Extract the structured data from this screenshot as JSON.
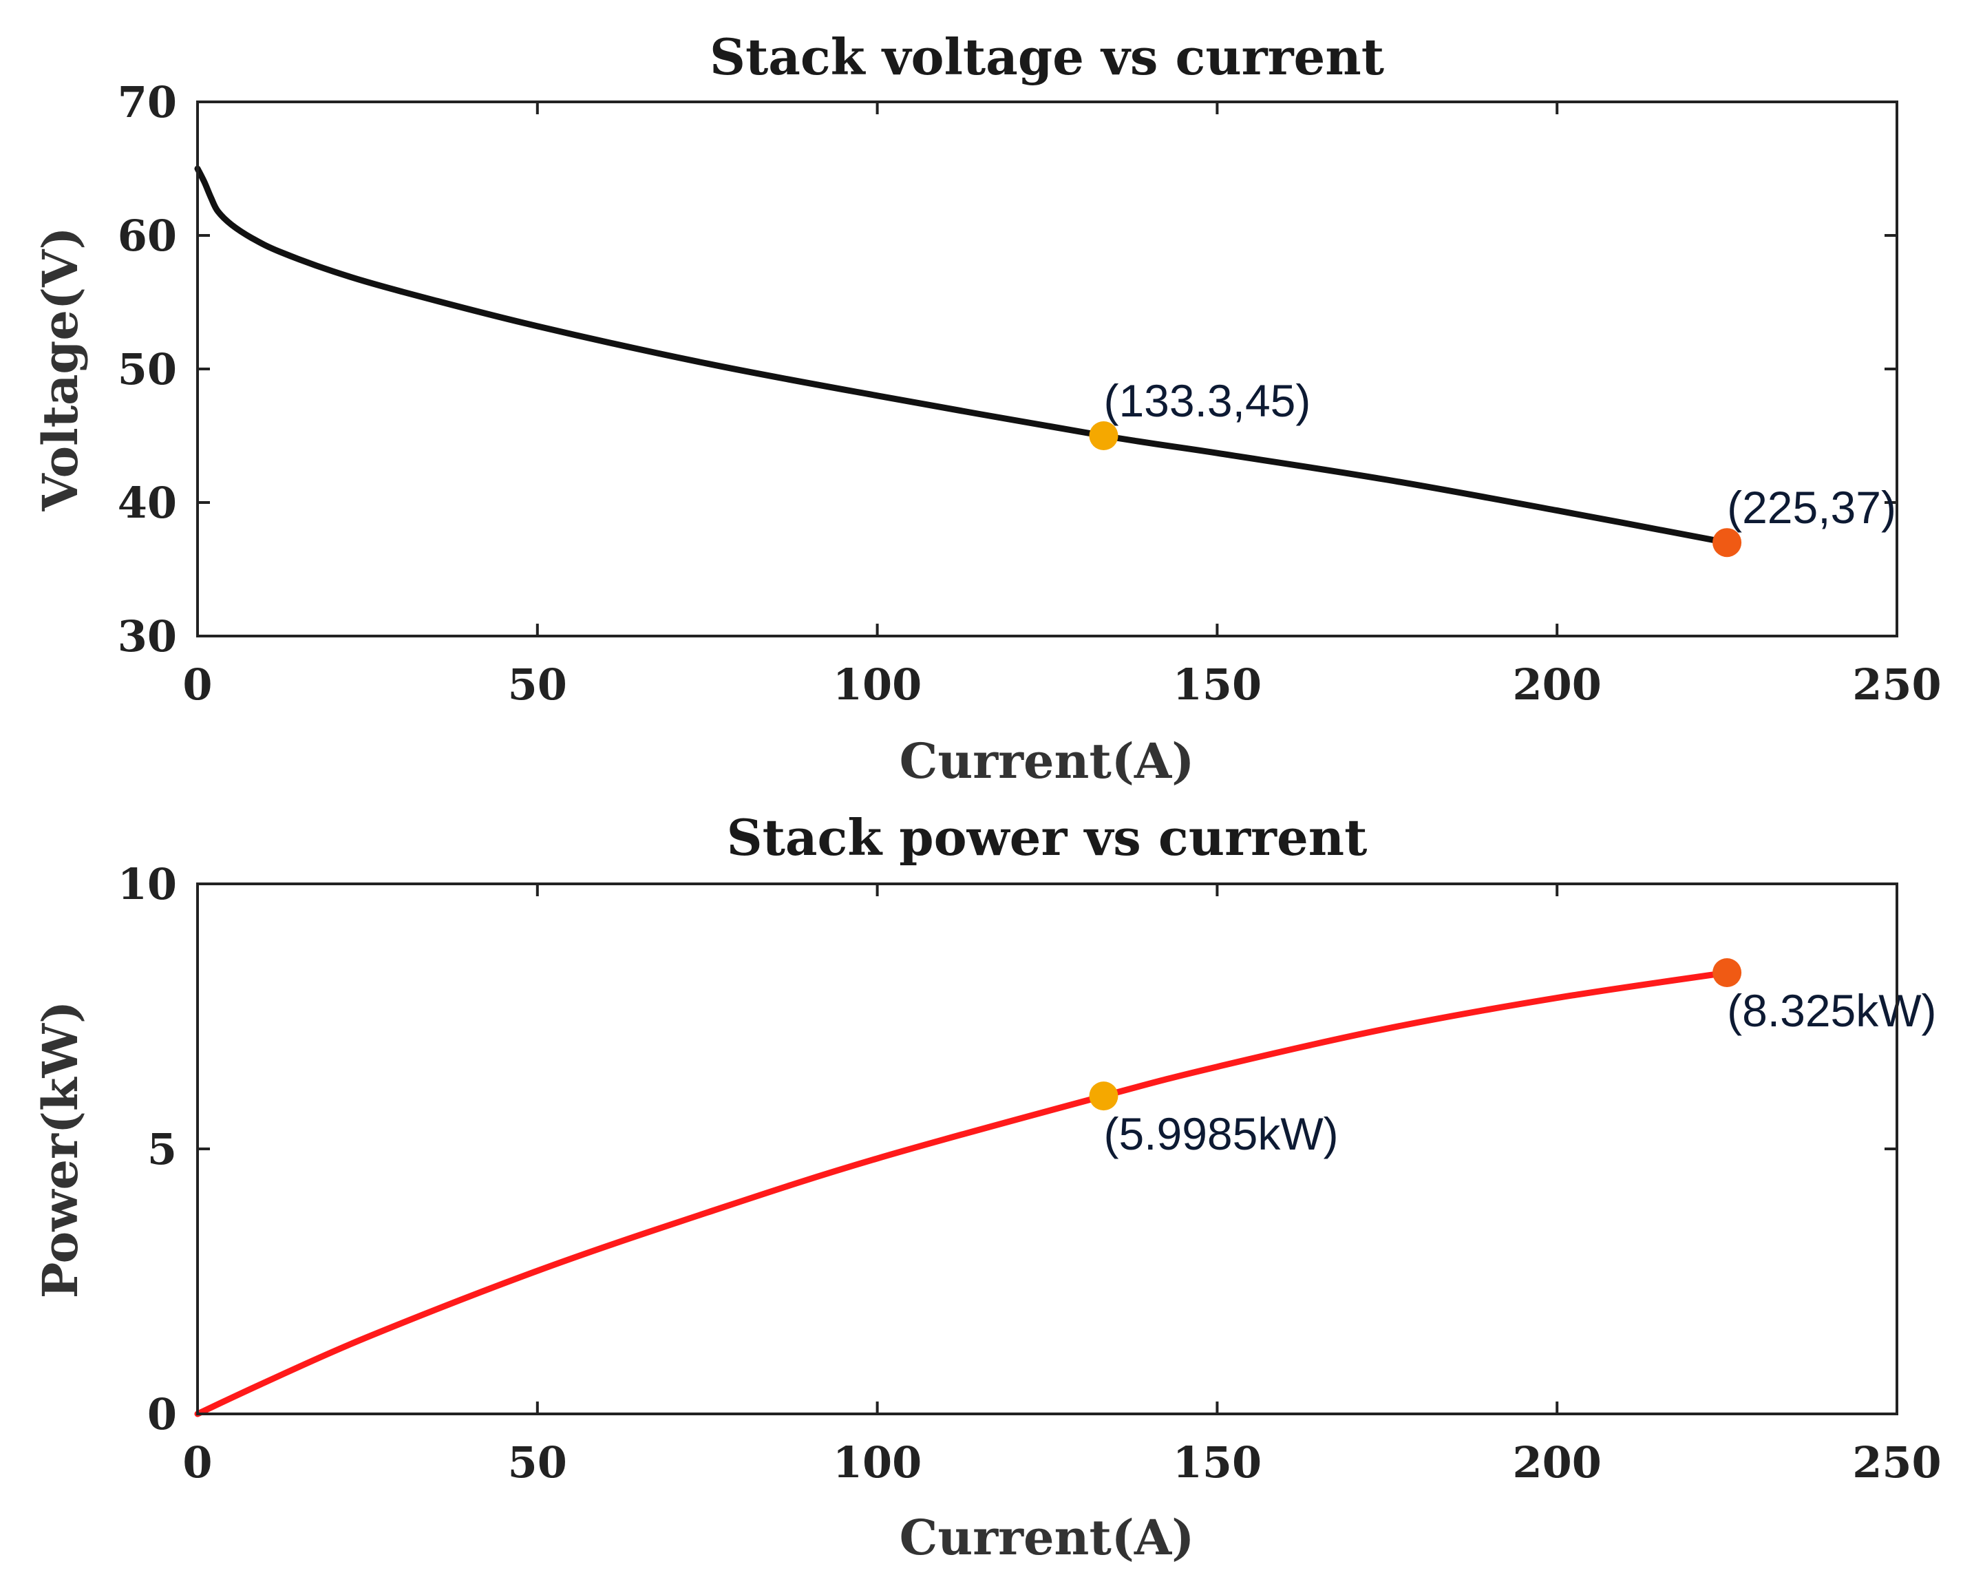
{
  "chart_data": [
    {
      "type": "line",
      "title": "Stack voltage vs current",
      "xlabel": "Current(A)",
      "ylabel": "Voltage(V)",
      "xlim": [
        0,
        250
      ],
      "ylim": [
        30,
        70
      ],
      "xticks": [
        0,
        50,
        100,
        150,
        200,
        250
      ],
      "yticks": [
        30,
        40,
        50,
        60,
        70
      ],
      "xtick_labels": [
        "0",
        "50",
        "100",
        "150",
        "200",
        "250"
      ],
      "ytick_labels": [
        "30",
        "40",
        "50",
        "60",
        "70"
      ],
      "grid": false,
      "series": [
        {
          "name": "Stack voltage",
          "color": "#111111",
          "x": [
            0,
            1,
            2,
            3,
            5,
            8,
            12,
            20,
            30,
            50,
            75,
            100,
            133.3,
            150,
            175,
            200,
            225
          ],
          "y": [
            65,
            64,
            62.8,
            61.8,
            60.8,
            59.8,
            58.8,
            57.3,
            55.8,
            53.2,
            50.4,
            48,
            45,
            43.7,
            41.7,
            39.4,
            37
          ]
        }
      ],
      "points": [
        {
          "x": 133.3,
          "y": 45,
          "color": "#f5a800",
          "label": "(133.3,45)"
        },
        {
          "x": 225,
          "y": 37,
          "color": "#f05a14",
          "label": "(225,37)"
        }
      ]
    },
    {
      "type": "line",
      "title": "Stack power vs current",
      "xlabel": "Current(A)",
      "ylabel": "Power(kW)",
      "xlim": [
        0,
        250
      ],
      "ylim": [
        0,
        10
      ],
      "xticks": [
        0,
        50,
        100,
        150,
        200,
        250
      ],
      "yticks": [
        0,
        5,
        10
      ],
      "xtick_labels": [
        "0",
        "50",
        "100",
        "150",
        "200",
        "250"
      ],
      "ytick_labels": [
        "0",
        "5",
        "10"
      ],
      "grid": false,
      "series": [
        {
          "name": "Stack power",
          "color": "#ff1a1a",
          "x": [
            0,
            10,
            25,
            50,
            75,
            100,
            133.3,
            150,
            175,
            200,
            225
          ],
          "y": [
            0,
            0.6,
            1.45,
            2.7,
            3.8,
            4.82,
            5.9985,
            6.55,
            7.27,
            7.85,
            8.325
          ]
        }
      ],
      "points": [
        {
          "x": 133.3,
          "y": 5.9985,
          "color": "#f5a800",
          "label": "(5.9985kW)"
        },
        {
          "x": 225,
          "y": 8.325,
          "color": "#f05a14",
          "label": "(8.325kW)"
        }
      ]
    }
  ]
}
